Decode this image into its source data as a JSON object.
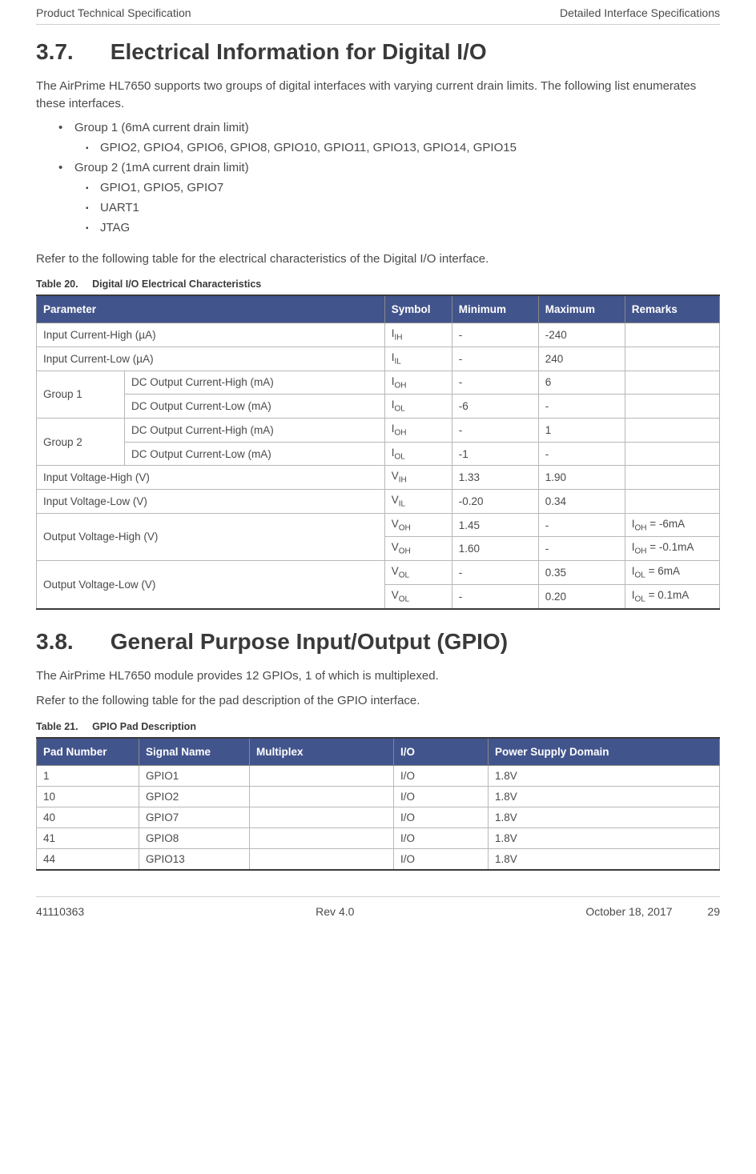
{
  "header": {
    "left": "Product Technical Specification",
    "right": "Detailed Interface Specifications"
  },
  "section37": {
    "number": "3.7.",
    "title": "Electrical Information for Digital I/O",
    "intro": "The AirPrime HL7650 supports two groups of digital interfaces with varying current drain limits. The following list enumerates these interfaces.",
    "group1_label": "Group 1 (6mA current drain limit)",
    "group1_items": [
      "GPIO2, GPIO4, GPIO6, GPIO8, GPIO10, GPIO11, GPIO13, GPIO14, GPIO15"
    ],
    "group2_label": "Group 2 (1mA current drain limit)",
    "group2_items": [
      "GPIO1, GPIO5, GPIO7",
      "UART1",
      "JTAG"
    ],
    "refer_text": "Refer to the following table for the electrical characteristics of the Digital I/O interface."
  },
  "table20": {
    "caption_num": "Table 20.",
    "caption_title": "Digital I/O Electrical Characteristics",
    "columns": [
      "Parameter",
      "Symbol",
      "Minimum",
      "Maximum",
      "Remarks"
    ],
    "rows": [
      {
        "param": "Input Current-High (µA)",
        "span": 2,
        "sym_base": "I",
        "sym_sub": "IH",
        "min": "-",
        "max": "-240",
        "rem": ""
      },
      {
        "param": "Input Current-Low (µA)",
        "span": 2,
        "sym_base": "I",
        "sym_sub": "IL",
        "min": "-",
        "max": "240",
        "rem": ""
      },
      {
        "group": "Group 1",
        "grouprows": 2,
        "param": "DC Output Current-High (mA)",
        "sym_base": "I",
        "sym_sub": "OH",
        "min": "-",
        "max": "6",
        "rem": ""
      },
      {
        "param": "DC Output Current-Low (mA)",
        "sym_base": "I",
        "sym_sub": "OL",
        "min": "-6",
        "max": "-",
        "rem": ""
      },
      {
        "group": "Group 2",
        "grouprows": 2,
        "param": "DC Output Current-High (mA)",
        "sym_base": "I",
        "sym_sub": "OH",
        "min": "-",
        "max": "1",
        "rem": ""
      },
      {
        "param": "DC Output Current-Low (mA)",
        "sym_base": "I",
        "sym_sub": "OL",
        "min": "-1",
        "max": "-",
        "rem": ""
      },
      {
        "param": "Input Voltage-High (V)",
        "span": 2,
        "sym_base": "V",
        "sym_sub": "IH",
        "min": "1.33",
        "max": "1.90",
        "rem": ""
      },
      {
        "param": "Input Voltage-Low (V)",
        "span": 2,
        "sym_base": "V",
        "sym_sub": "IL",
        "min": "-0.20",
        "max": "0.34",
        "rem": ""
      },
      {
        "group": "Output Voltage-High (V)",
        "grouprows": 2,
        "groupspan": 2,
        "sym_base": "V",
        "sym_sub": "OH",
        "min": "1.45",
        "max": "-",
        "rem_base": "I",
        "rem_sub": "OH",
        "rem_tail": " = -6mA"
      },
      {
        "sym_base": "V",
        "sym_sub": "OH",
        "min": "1.60",
        "max": "-",
        "rem_base": "I",
        "rem_sub": "OH",
        "rem_tail": " = -0.1mA"
      },
      {
        "group": "Output Voltage-Low (V)",
        "grouprows": 2,
        "groupspan": 2,
        "sym_base": "V",
        "sym_sub": "OL",
        "min": "-",
        "max": "0.35",
        "rem_base": "I",
        "rem_sub": "OL",
        "rem_tail": " = 6mA"
      },
      {
        "sym_base": "V",
        "sym_sub": "OL",
        "min": "-",
        "max": "0.20",
        "rem_base": "I",
        "rem_sub": "OL",
        "rem_tail": " = 0.1mA"
      }
    ]
  },
  "section38": {
    "number": "3.8.",
    "title": "General Purpose Input/Output (GPIO)",
    "line1": "The AirPrime HL7650 module provides 12 GPIOs, 1 of which is multiplexed.",
    "line2": "Refer to the following table for the pad description of the GPIO interface."
  },
  "table21": {
    "caption_num": "Table 21.",
    "caption_title": "GPIO Pad Description",
    "columns": [
      "Pad Number",
      "Signal Name",
      "Multiplex",
      "I/O",
      "Power Supply Domain"
    ],
    "rows": [
      {
        "pad": "1",
        "signal": "GPIO1",
        "mux": "",
        "io": "I/O",
        "psd": "1.8V"
      },
      {
        "pad": "10",
        "signal": "GPIO2",
        "mux": "",
        "io": "I/O",
        "psd": "1.8V"
      },
      {
        "pad": "40",
        "signal": "GPIO7",
        "mux": "",
        "io": "I/O",
        "psd": "1.8V"
      },
      {
        "pad": "41",
        "signal": "GPIO8",
        "mux": "",
        "io": "I/O",
        "psd": "1.8V"
      },
      {
        "pad": "44",
        "signal": "GPIO13",
        "mux": "",
        "io": "I/O",
        "psd": "1.8V"
      }
    ]
  },
  "footer": {
    "doc_id": "41110363",
    "rev": "Rev 4.0",
    "date": "October 18, 2017",
    "page": "29"
  },
  "colors": {
    "header_bg": "#42548c",
    "header_text": "#ffffff",
    "border": "#b8b8b8",
    "table_outer": "#3a3a3a",
    "body_text": "#4a4a4a"
  }
}
